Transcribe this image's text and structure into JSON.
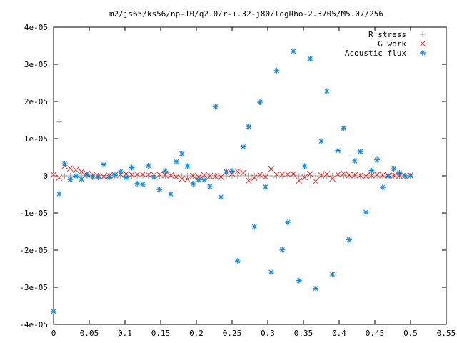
{
  "chart_data": {
    "type": "scatter",
    "title": "m2/js65/ks56/np-10/q2.0/r-+.32-j80/logRho-2.3705/M5.07/256",
    "xlabel": "",
    "ylabel": "",
    "xlim": [
      0,
      0.55
    ],
    "ylim": [
      -4e-05,
      4e-05
    ],
    "grid": false,
    "legend_position": "top-right",
    "x_ticks": [
      {
        "value": 0,
        "label": "0"
      },
      {
        "value": 0.05,
        "label": "0.05"
      },
      {
        "value": 0.1,
        "label": "0.1"
      },
      {
        "value": 0.15,
        "label": "0.15"
      },
      {
        "value": 0.2,
        "label": "0.2"
      },
      {
        "value": 0.25,
        "label": "0.25"
      },
      {
        "value": 0.3,
        "label": "0.3"
      },
      {
        "value": 0.35,
        "label": "0.35"
      },
      {
        "value": 0.4,
        "label": "0.4"
      },
      {
        "value": 0.45,
        "label": "0.45"
      },
      {
        "value": 0.5,
        "label": "0.5"
      },
      {
        "value": 0.55,
        "label": "0.55"
      }
    ],
    "y_ticks": [
      {
        "value": 4e-05,
        "label": "4e-05"
      },
      {
        "value": 3e-05,
        "label": "3e-05"
      },
      {
        "value": 2e-05,
        "label": "2e-05"
      },
      {
        "value": 1e-05,
        "label": "1e-05"
      },
      {
        "value": 0,
        "label": "0"
      },
      {
        "value": -1e-05,
        "label": "-1e-05"
      },
      {
        "value": -2e-05,
        "label": "-2e-05"
      },
      {
        "value": -3e-05,
        "label": "-3e-05"
      },
      {
        "value": -4e-05,
        "label": "-4e-05"
      }
    ],
    "series": [
      {
        "name": "R stress",
        "marker": "plus",
        "color": "#a0a0a0",
        "x": [
          0.0,
          0.0078,
          0.0156,
          0.0234,
          0.0313,
          0.0391,
          0.0469,
          0.0547,
          0.0625,
          0.0703,
          0.0781,
          0.0859,
          0.0938,
          0.1016,
          0.1094,
          0.1172,
          0.125,
          0.1328,
          0.1406,
          0.1484,
          0.1563,
          0.1641,
          0.1719,
          0.1797,
          0.1875,
          0.1953,
          0.2031,
          0.2109,
          0.2188,
          0.2266,
          0.2344,
          0.2422,
          0.25,
          0.2578,
          0.2656,
          0.2734,
          0.2813,
          0.2891,
          0.2969,
          0.3047,
          0.3125,
          0.3203,
          0.3281,
          0.3359,
          0.3438,
          0.3516,
          0.3594,
          0.3672,
          0.375,
          0.3828,
          0.3906,
          0.3984,
          0.4063,
          0.4141,
          0.4219,
          0.4297,
          0.4375,
          0.4453,
          0.4531,
          0.4609,
          0.4688,
          0.4766,
          0.4844,
          0.4922,
          0.5
        ],
        "y": [
          0.0,
          1.45e-05,
          0.0,
          0.0,
          0.0,
          0.0,
          0.0,
          0.0,
          0.0,
          0.0,
          0.0,
          0.0,
          0.0,
          0.0,
          0.0,
          0.0,
          0.0,
          0.0,
          0.0,
          0.0,
          0.0,
          0.0,
          0.0,
          0.0,
          0.0,
          0.0,
          0.0,
          0.0,
          0.0,
          0.0,
          0.0,
          0.0,
          0.0,
          0.0,
          0.0,
          0.0,
          0.0,
          0.0,
          0.0,
          0.0,
          0.0,
          0.0,
          0.0,
          0.0,
          0.0,
          0.0,
          0.0,
          0.0,
          0.0,
          0.0,
          0.0,
          0.0,
          0.0,
          0.0,
          0.0,
          0.0,
          0.0,
          0.0,
          0.0,
          0.0,
          0.0,
          0.0,
          0.0,
          0.0,
          0.0
        ]
      },
      {
        "name": "G work",
        "marker": "cross",
        "color": "#e03030",
        "x": [
          0.0,
          0.0078,
          0.0156,
          0.0234,
          0.0313,
          0.0391,
          0.0469,
          0.0547,
          0.0625,
          0.0703,
          0.0781,
          0.0859,
          0.0938,
          0.1016,
          0.1094,
          0.1172,
          0.125,
          0.1328,
          0.1406,
          0.1484,
          0.1563,
          0.1641,
          0.1719,
          0.1797,
          0.1875,
          0.1953,
          0.2031,
          0.2109,
          0.2188,
          0.2266,
          0.2344,
          0.2422,
          0.25,
          0.2578,
          0.2656,
          0.2734,
          0.2813,
          0.2891,
          0.2969,
          0.3047,
          0.3125,
          0.3203,
          0.3281,
          0.3359,
          0.3438,
          0.3516,
          0.3594,
          0.3672,
          0.375,
          0.3828,
          0.3906,
          0.3984,
          0.4063,
          0.4141,
          0.4219,
          0.4297,
          0.4375,
          0.4453,
          0.4531,
          0.4609,
          0.4688,
          0.4766,
          0.4844,
          0.4922,
          0.5
        ],
        "y": [
          3e-07,
          -5e-07,
          2.6e-06,
          2e-06,
          1.6e-06,
          1.1e-06,
          6e-07,
          3e-07,
          0.0,
          -2e-07,
          0.0,
          2e-07,
          4e-07,
          5e-07,
          3e-07,
          4e-07,
          4e-07,
          3e-07,
          3e-07,
          3e-07,
          2e-07,
          1e-07,
          -3e-07,
          -8e-07,
          -9e-07,
          0.0,
          -3e-07,
          2e-07,
          -1e-07,
          -1e-07,
          -3e-07,
          1.1e-06,
          6e-07,
          1.2e-06,
          8e-07,
          -1.3e-06,
          -5e-07,
          3e-07,
          -3e-07,
          1.8e-06,
          3e-07,
          4e-07,
          4e-07,
          5e-07,
          -1.3e-06,
          -4e-07,
          5e-07,
          -1.5e-06,
          1e-07,
          5e-07,
          -8e-07,
          4e-07,
          6e-07,
          2e-07,
          2e-07,
          1e-07,
          -1e-07,
          1e-07,
          3e-07,
          2e-07,
          1e-07,
          1e-07,
          0.0,
          -1e-07,
          2e-07
        ]
      },
      {
        "name": "Acoustic flux",
        "marker": "star",
        "color": "#1a8ad4",
        "x": [
          0.0,
          0.0078,
          0.0156,
          0.0234,
          0.0313,
          0.0391,
          0.0469,
          0.0547,
          0.0625,
          0.0703,
          0.0781,
          0.0859,
          0.0938,
          0.1016,
          0.1094,
          0.1172,
          0.125,
          0.1328,
          0.1406,
          0.1484,
          0.1563,
          0.1641,
          0.1719,
          0.1797,
          0.1875,
          0.1953,
          0.2031,
          0.2109,
          0.2188,
          0.2266,
          0.2344,
          0.2422,
          0.25,
          0.2578,
          0.2656,
          0.2734,
          0.2813,
          0.2891,
          0.2969,
          0.3047,
          0.3125,
          0.3203,
          0.3281,
          0.3359,
          0.3438,
          0.3516,
          0.3594,
          0.3672,
          0.375,
          0.3828,
          0.3906,
          0.3984,
          0.4063,
          0.4141,
          0.4219,
          0.4297,
          0.4375,
          0.4453,
          0.4531,
          0.4609,
          0.4688,
          0.4766,
          0.4844,
          0.4922,
          0.5
        ],
        "y": [
          -3.65e-05,
          -4.9e-06,
          3.2e-06,
          -1e-06,
          -1e-07,
          -9e-07,
          2e-07,
          -3e-07,
          -4e-07,
          3e-06,
          -4e-07,
          2e-07,
          1.1e-06,
          -5e-07,
          2.2e-06,
          -2.1e-06,
          -2.3e-06,
          2.7e-06,
          -4e-07,
          -3.7e-06,
          1.3e-06,
          -4.9e-06,
          3.8e-06,
          5.9e-06,
          2.6e-06,
          -2.1e-06,
          -1.1e-06,
          -1.1e-06,
          -2.9e-06,
          1.86e-05,
          -5.7e-06,
          1e-06,
          1.3e-06,
          -2.29e-05,
          7.8e-06,
          1.32e-05,
          -1.37e-05,
          1.98e-05,
          -3e-06,
          -2.59e-05,
          2.83e-05,
          -1.99e-05,
          -1.25e-05,
          3.35e-05,
          -2.82e-05,
          2.6e-06,
          3.15e-05,
          -3.03e-05,
          9.3e-06,
          2.28e-05,
          -2.65e-05,
          6.8e-06,
          1.28e-05,
          -1.72e-05,
          4e-06,
          6.5e-06,
          -9.8e-06,
          1.4e-06,
          4.3e-06,
          -3.1e-06,
          -1e-07,
          1.9e-06,
          8e-07,
          0.0,
          0.0
        ]
      }
    ]
  }
}
